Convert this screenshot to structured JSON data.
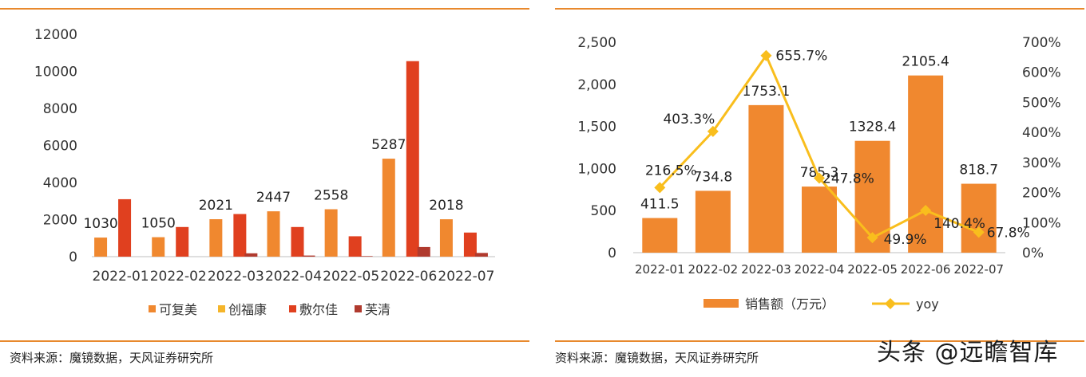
{
  "left_panel": {
    "source": "资料来源：魔镜数据，天风证券研究所"
  },
  "right_panel": {
    "source": "资料来源：魔镜数据，天风证券研究所"
  },
  "watermark": "头条 @远瞻智库",
  "chart_data": [
    {
      "type": "bar",
      "title": "",
      "xlabel": "",
      "ylabel": "",
      "categories": [
        "2022-01",
        "2022-02",
        "2022-03",
        "2022-04",
        "2022-05",
        "2022-06",
        "2022-07"
      ],
      "ylim": [
        0,
        12000
      ],
      "yticks": [
        "0",
        "2000",
        "4000",
        "6000",
        "8000",
        "10000",
        "12000"
      ],
      "grid": false,
      "legend": "bottom",
      "series": [
        {
          "name": "可复美",
          "color": "#f0882f",
          "values": [
            1030,
            1050,
            2021,
            2447,
            2558,
            5287,
            2018
          ]
        },
        {
          "name": "创福康",
          "color": "#f5b52a",
          "values": [
            0,
            0,
            0,
            0,
            0,
            0,
            0
          ]
        },
        {
          "name": "敷尔佳",
          "color": "#e0401f",
          "values": [
            3100,
            1600,
            2300,
            1600,
            1100,
            10550,
            1300
          ]
        },
        {
          "name": "芙清",
          "color": "#b03a2e",
          "values": [
            0,
            0,
            180,
            60,
            30,
            520,
            200
          ]
        }
      ],
      "data_labels": [
        {
          "series": "可复美",
          "values": [
            "1030",
            "1050",
            "2021",
            "2447",
            "2558",
            "5287",
            "2018"
          ]
        }
      ]
    },
    {
      "type": "bar+line",
      "title": "",
      "xlabel": "",
      "ylabel": "",
      "categories": [
        "2022-01",
        "2022-02",
        "2022-03",
        "2022-04",
        "2022-05",
        "2022-06",
        "2022-07"
      ],
      "ylim": [
        0,
        2500
      ],
      "yticks": [
        "0",
        "500",
        "1,000",
        "1,500",
        "2,000",
        "2,500"
      ],
      "y2lim": [
        0,
        7
      ],
      "y2ticks": [
        "0%",
        "100%",
        "200%",
        "300%",
        "400%",
        "500%",
        "600%",
        "700%"
      ],
      "grid": false,
      "legend": "bottom",
      "series": [
        {
          "name": "销售额（万元）",
          "type": "bar",
          "color": "#f0882f",
          "values": [
            411.5,
            734.8,
            1753.1,
            785.3,
            1328.4,
            2105.4,
            818.7
          ],
          "labels": [
            "411.5",
            "734.8",
            "1753.1",
            "785.3",
            "1328.4",
            "2105.4",
            "818.7"
          ]
        },
        {
          "name": "yoy",
          "type": "line",
          "axis": "right",
          "color": "#f9be1d",
          "values": [
            2.165,
            4.033,
            6.557,
            2.478,
            0.499,
            1.404,
            0.678
          ],
          "labels": [
            "216.5%",
            "403.3%",
            "655.7%",
            "247.8%",
            "49.9%",
            "140.4%",
            "67.8%"
          ]
        }
      ]
    }
  ]
}
